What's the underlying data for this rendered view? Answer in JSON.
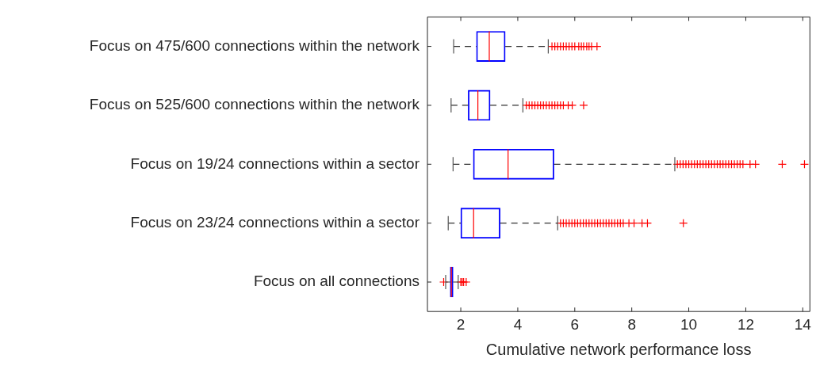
{
  "chart_data": {
    "type": "box",
    "orientation": "horizontal",
    "xlabel": "Cumulative network performance loss",
    "categories": [
      "Focus on 475/600 connections within the network",
      "Focus on 525/600 connections within the network",
      "Focus on 19/24 connections within a sector",
      "Focus on 23/24 connections within a sector",
      "Focus on all connections"
    ],
    "color": "#0000ff",
    "marker": "cross",
    "line_style": "dashed",
    "grid": false,
    "legend": false,
    "xlim": [
      0.83,
      14.25
    ],
    "xticks": [
      2,
      4,
      6,
      8,
      10,
      12,
      14
    ],
    "boxes": [
      {
        "low": 1.75,
        "q1": 2.55,
        "median": 3.0,
        "q3": 3.56,
        "high": 5.07,
        "outliers": [
          5.2,
          5.3,
          5.4,
          5.5,
          5.6,
          5.7,
          5.8,
          5.9,
          6.0,
          6.14,
          6.23,
          6.31,
          6.42,
          6.5,
          6.59,
          6.78
        ]
      },
      {
        "low": 1.66,
        "q1": 2.26,
        "median": 2.6,
        "q3": 3.03,
        "high": 4.18,
        "outliers": [
          4.3,
          4.4,
          4.5,
          4.6,
          4.7,
          4.8,
          4.9,
          5.0,
          5.1,
          5.2,
          5.3,
          5.4,
          5.5,
          5.6,
          5.77,
          5.91,
          6.31
        ]
      },
      {
        "low": 1.73,
        "q1": 2.44,
        "median": 3.66,
        "q3": 5.27,
        "high": 9.51,
        "outliers": [
          9.6,
          9.7,
          9.8,
          9.9,
          10.0,
          10.1,
          10.2,
          10.3,
          10.4,
          10.5,
          10.6,
          10.7,
          10.8,
          10.9,
          11.0,
          11.1,
          11.2,
          11.3,
          11.4,
          11.5,
          11.6,
          11.7,
          11.8,
          11.9,
          12.15,
          12.34,
          13.28,
          14.06
        ]
      },
      {
        "low": 1.56,
        "q1": 2.0,
        "median": 2.45,
        "q3": 3.38,
        "high": 5.4,
        "outliers": [
          5.5,
          5.6,
          5.7,
          5.8,
          5.9,
          6.0,
          6.1,
          6.2,
          6.3,
          6.4,
          6.5,
          6.6,
          6.7,
          6.8,
          6.9,
          7.0,
          7.1,
          7.2,
          7.3,
          7.4,
          7.5,
          7.6,
          7.7,
          7.9,
          8.08,
          8.36,
          8.55,
          9.81
        ]
      },
      {
        "low": 1.47,
        "q1": 1.63,
        "median": 1.67,
        "q3": 1.73,
        "high": 1.91,
        "outliers": [
          1.4,
          2.0,
          2.05,
          2.1,
          2.19
        ]
      }
    ]
  }
}
